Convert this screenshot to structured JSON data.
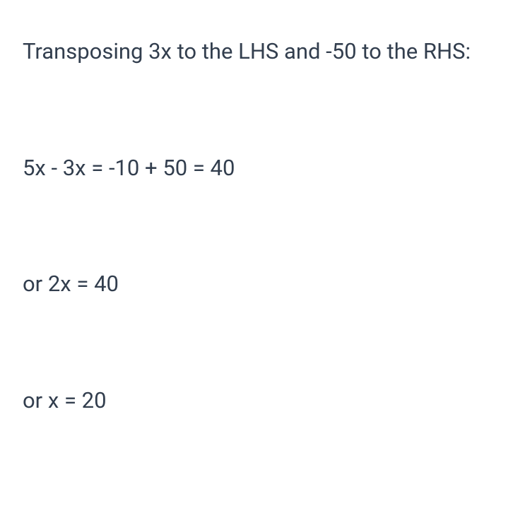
{
  "text_color": "#323e4e",
  "background_color": "#ffffff",
  "font_size": 31,
  "lines": {
    "line1": "Transposing 3x to the LHS and -50 to the RHS:",
    "line2": "5x - 3x = -10 + 50 = 40",
    "line3": "or 2x = 40",
    "line4": "or x = 20"
  }
}
